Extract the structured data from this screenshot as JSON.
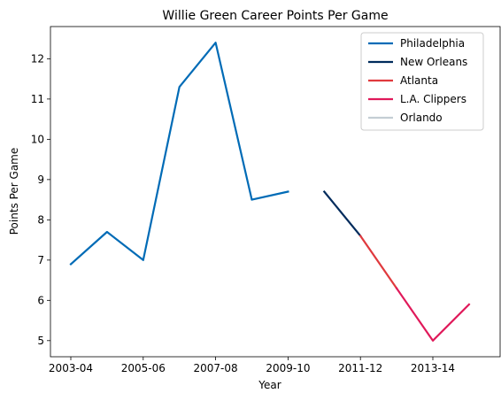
{
  "chart_data": {
    "type": "line",
    "title": "Willie Green Career Points Per Game",
    "xlabel": "Year",
    "ylabel": "Points Per Game",
    "x_categories": [
      "2003-04",
      "2004-05",
      "2005-06",
      "2006-07",
      "2007-08",
      "2008-09",
      "2009-10",
      "2010-11",
      "2011-12",
      "2012-13",
      "2013-14",
      "2014-15"
    ],
    "x_tick_labels": [
      "2003-04",
      "2005-06",
      "2007-08",
      "2009-10",
      "2011-12",
      "2013-14"
    ],
    "ylim": [
      4.6,
      12.8
    ],
    "y_ticks": [
      5,
      6,
      7,
      8,
      9,
      10,
      11,
      12
    ],
    "grid": false,
    "legend_position": "top-right",
    "series": [
      {
        "name": "Philadelphia",
        "color": "#006bb6",
        "x": [
          "2003-04",
          "2004-05",
          "2005-06",
          "2006-07",
          "2007-08",
          "2008-09",
          "2009-10"
        ],
        "values": [
          6.9,
          7.7,
          7.0,
          11.3,
          12.4,
          8.5,
          8.7
        ]
      },
      {
        "name": "New Orleans",
        "color": "#002b5c",
        "x": [
          "2010-11",
          "2011-12"
        ],
        "values": [
          8.7,
          7.6
        ]
      },
      {
        "name": "Atlanta",
        "color": "#e03a3e",
        "x": [
          "2011-12",
          "2012-13"
        ],
        "values": [
          7.6,
          6.3
        ]
      },
      {
        "name": "L.A. Clippers",
        "color": "#e0195a",
        "x": [
          "2012-13",
          "2013-14",
          "2014-15"
        ],
        "values": [
          6.3,
          5.0,
          5.9
        ]
      },
      {
        "name": "Orlando",
        "color": "#c4ced4",
        "x": [],
        "values": []
      }
    ]
  }
}
